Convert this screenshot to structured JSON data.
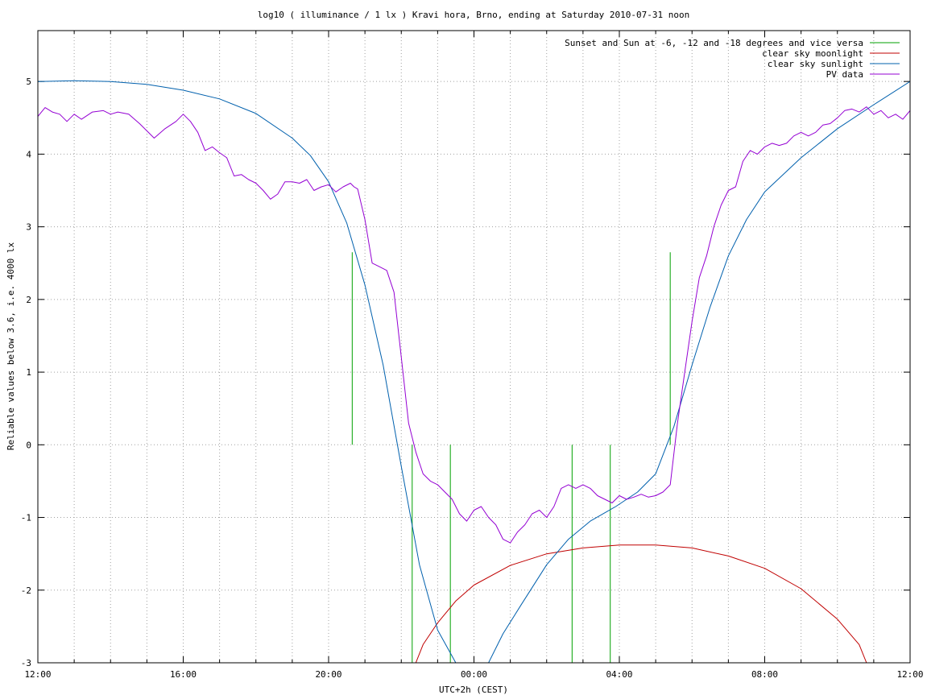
{
  "chart_data": {
    "type": "line",
    "title": "log10 ( illuminance / 1 lx ) Kravi hora, Brno, ending at Saturday 2010-07-31 noon",
    "xlabel": "UTC+2h (CEST)",
    "ylabel": "Reliable values below 3.6, i.e. 4000 lx",
    "x_unit": "hours since 2010-07-30 12:00 CEST",
    "xlim": [
      0,
      24
    ],
    "ylim": [
      -3,
      5.7
    ],
    "x_ticks": [
      {
        "value": 0,
        "label": "12:00"
      },
      {
        "value": 4,
        "label": "16:00"
      },
      {
        "value": 8,
        "label": "20:00"
      },
      {
        "value": 12,
        "label": "00:00"
      },
      {
        "value": 16,
        "label": "04:00"
      },
      {
        "value": 20,
        "label": "08:00"
      },
      {
        "value": 24,
        "label": "12:00"
      }
    ],
    "y_ticks": [
      {
        "value": -3,
        "label": "-3"
      },
      {
        "value": -2,
        "label": "-2"
      },
      {
        "value": -1,
        "label": "-1"
      },
      {
        "value": 0,
        "label": "0"
      },
      {
        "value": 1,
        "label": "1"
      },
      {
        "value": 2,
        "label": "2"
      },
      {
        "value": 3,
        "label": "3"
      },
      {
        "value": 4,
        "label": "4"
      },
      {
        "value": 5,
        "label": "5"
      }
    ],
    "x_minor_step": 1,
    "grid": true,
    "legend_position": "top-right",
    "series": [
      {
        "name": "Sunset and Sun at -6, -12 and -18 degrees and vice versa",
        "color": "#00a000",
        "kind": "markers",
        "segments": [
          {
            "x": 8.65,
            "y0": 0,
            "y1": 2.65
          },
          {
            "x": 10.3,
            "y0": -3,
            "y1": 0
          },
          {
            "x": 11.35,
            "y0": -3,
            "y1": 0
          },
          {
            "x": 14.7,
            "y0": -3,
            "y1": 0
          },
          {
            "x": 15.75,
            "y0": -3,
            "y1": 0
          },
          {
            "x": 17.4,
            "y0": 0,
            "y1": 2.65
          }
        ]
      },
      {
        "name": "clear sky moonlight",
        "color": "#c00000",
        "kind": "line",
        "points": [
          [
            10.4,
            -3
          ],
          [
            10.6,
            -2.75
          ],
          [
            11.0,
            -2.45
          ],
          [
            11.5,
            -2.15
          ],
          [
            12.0,
            -1.93
          ],
          [
            13.0,
            -1.66
          ],
          [
            14.0,
            -1.5
          ],
          [
            15.0,
            -1.42
          ],
          [
            16.0,
            -1.38
          ],
          [
            17.0,
            -1.38
          ],
          [
            18.0,
            -1.42
          ],
          [
            19.0,
            -1.53
          ],
          [
            20.0,
            -1.7
          ],
          [
            21.0,
            -1.98
          ],
          [
            22.0,
            -2.4
          ],
          [
            22.6,
            -2.75
          ],
          [
            22.8,
            -3
          ]
        ]
      },
      {
        "name": "clear sky sunlight",
        "color": "#0060ad",
        "kind": "line",
        "points": [
          [
            0,
            5.0
          ],
          [
            1,
            5.01
          ],
          [
            2,
            5.0
          ],
          [
            3,
            4.96
          ],
          [
            4,
            4.88
          ],
          [
            5,
            4.76
          ],
          [
            6,
            4.56
          ],
          [
            7,
            4.22
          ],
          [
            7.5,
            3.98
          ],
          [
            8,
            3.62
          ],
          [
            8.5,
            3.05
          ],
          [
            9,
            2.2
          ],
          [
            9.5,
            1.1
          ],
          [
            10,
            -0.3
          ],
          [
            10.5,
            -1.65
          ],
          [
            11,
            -2.55
          ],
          [
            11.5,
            -3.0
          ],
          [
            12.4,
            -3.0
          ],
          [
            12.8,
            -2.6
          ],
          [
            13.3,
            -2.2
          ],
          [
            14.0,
            -1.65
          ],
          [
            14.6,
            -1.3
          ],
          [
            15.2,
            -1.05
          ],
          [
            15.9,
            -0.85
          ],
          [
            16.5,
            -0.65
          ],
          [
            17.0,
            -0.4
          ],
          [
            17.5,
            0.25
          ],
          [
            18.0,
            1.1
          ],
          [
            18.5,
            1.9
          ],
          [
            19.0,
            2.6
          ],
          [
            19.5,
            3.1
          ],
          [
            20.0,
            3.48
          ],
          [
            21.0,
            3.95
          ],
          [
            22.0,
            4.35
          ],
          [
            23.0,
            4.68
          ],
          [
            24.0,
            5.0
          ]
        ]
      },
      {
        "name": "PV data",
        "color": "#9400d3",
        "kind": "line",
        "points": [
          [
            0,
            4.52
          ],
          [
            0.2,
            4.64
          ],
          [
            0.4,
            4.58
          ],
          [
            0.6,
            4.55
          ],
          [
            0.8,
            4.45
          ],
          [
            1.0,
            4.55
          ],
          [
            1.2,
            4.48
          ],
          [
            1.5,
            4.58
          ],
          [
            1.8,
            4.6
          ],
          [
            2.0,
            4.55
          ],
          [
            2.2,
            4.58
          ],
          [
            2.5,
            4.55
          ],
          [
            2.8,
            4.42
          ],
          [
            3.0,
            4.32
          ],
          [
            3.2,
            4.22
          ],
          [
            3.5,
            4.35
          ],
          [
            3.8,
            4.45
          ],
          [
            4.0,
            4.55
          ],
          [
            4.2,
            4.45
          ],
          [
            4.4,
            4.3
          ],
          [
            4.6,
            4.05
          ],
          [
            4.8,
            4.1
          ],
          [
            5.0,
            4.02
          ],
          [
            5.2,
            3.95
          ],
          [
            5.4,
            3.7
          ],
          [
            5.6,
            3.72
          ],
          [
            5.8,
            3.65
          ],
          [
            6.0,
            3.6
          ],
          [
            6.2,
            3.5
          ],
          [
            6.4,
            3.38
          ],
          [
            6.6,
            3.45
          ],
          [
            6.8,
            3.62
          ],
          [
            7.0,
            3.62
          ],
          [
            7.2,
            3.6
          ],
          [
            7.4,
            3.65
          ],
          [
            7.6,
            3.5
          ],
          [
            7.8,
            3.55
          ],
          [
            8.0,
            3.58
          ],
          [
            8.2,
            3.48
          ],
          [
            8.4,
            3.55
          ],
          [
            8.6,
            3.6
          ],
          [
            8.7,
            3.55
          ],
          [
            8.8,
            3.52
          ],
          [
            9.0,
            3.1
          ],
          [
            9.2,
            2.5
          ],
          [
            9.4,
            2.45
          ],
          [
            9.6,
            2.4
          ],
          [
            9.8,
            2.1
          ],
          [
            10.0,
            1.2
          ],
          [
            10.2,
            0.3
          ],
          [
            10.4,
            -0.1
          ],
          [
            10.6,
            -0.4
          ],
          [
            10.8,
            -0.5
          ],
          [
            11.0,
            -0.55
          ],
          [
            11.2,
            -0.65
          ],
          [
            11.4,
            -0.75
          ],
          [
            11.6,
            -0.95
          ],
          [
            11.8,
            -1.05
          ],
          [
            12.0,
            -0.9
          ],
          [
            12.2,
            -0.85
          ],
          [
            12.4,
            -1.0
          ],
          [
            12.6,
            -1.1
          ],
          [
            12.8,
            -1.3
          ],
          [
            13.0,
            -1.35
          ],
          [
            13.2,
            -1.2
          ],
          [
            13.4,
            -1.1
          ],
          [
            13.6,
            -0.95
          ],
          [
            13.8,
            -0.9
          ],
          [
            14.0,
            -1.0
          ],
          [
            14.2,
            -0.85
          ],
          [
            14.4,
            -0.6
          ],
          [
            14.6,
            -0.55
          ],
          [
            14.8,
            -0.6
          ],
          [
            15.0,
            -0.55
          ],
          [
            15.2,
            -0.6
          ],
          [
            15.4,
            -0.7
          ],
          [
            15.6,
            -0.75
          ],
          [
            15.8,
            -0.8
          ],
          [
            16.0,
            -0.7
          ],
          [
            16.2,
            -0.75
          ],
          [
            16.4,
            -0.72
          ],
          [
            16.6,
            -0.68
          ],
          [
            16.8,
            -0.72
          ],
          [
            17.0,
            -0.7
          ],
          [
            17.2,
            -0.65
          ],
          [
            17.4,
            -0.55
          ],
          [
            17.6,
            0.3
          ],
          [
            17.8,
            1.0
          ],
          [
            18.0,
            1.7
          ],
          [
            18.2,
            2.3
          ],
          [
            18.4,
            2.6
          ],
          [
            18.6,
            3.0
          ],
          [
            18.8,
            3.3
          ],
          [
            19.0,
            3.5
          ],
          [
            19.2,
            3.55
          ],
          [
            19.4,
            3.9
          ],
          [
            19.6,
            4.05
          ],
          [
            19.8,
            4.0
          ],
          [
            20.0,
            4.1
          ],
          [
            20.2,
            4.15
          ],
          [
            20.4,
            4.12
          ],
          [
            20.6,
            4.15
          ],
          [
            20.8,
            4.25
          ],
          [
            21.0,
            4.3
          ],
          [
            21.2,
            4.25
          ],
          [
            21.4,
            4.3
          ],
          [
            21.6,
            4.4
          ],
          [
            21.8,
            4.42
          ],
          [
            22.0,
            4.5
          ],
          [
            22.2,
            4.6
          ],
          [
            22.4,
            4.62
          ],
          [
            22.6,
            4.58
          ],
          [
            22.8,
            4.65
          ],
          [
            23.0,
            4.55
          ],
          [
            23.2,
            4.6
          ],
          [
            23.4,
            4.5
          ],
          [
            23.6,
            4.55
          ],
          [
            23.8,
            4.48
          ],
          [
            24.0,
            4.6
          ]
        ]
      }
    ]
  }
}
